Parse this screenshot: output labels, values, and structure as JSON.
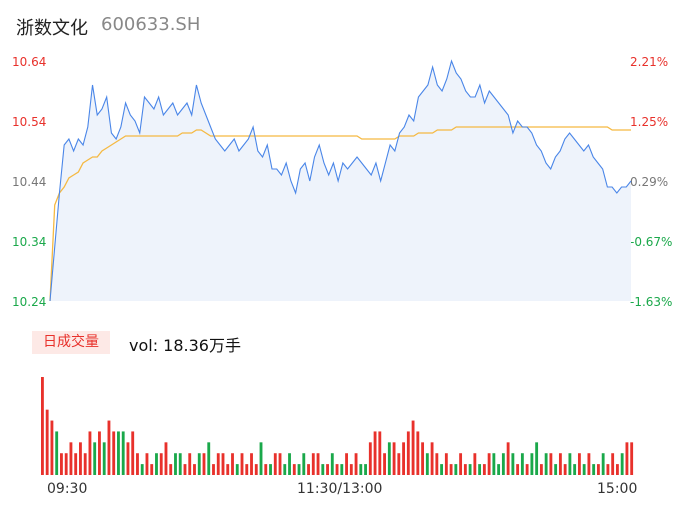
{
  "stock": {
    "name": "浙数文化",
    "code": "600633.SH"
  },
  "price_axis": {
    "labels": [
      "10.64",
      "10.54",
      "10.44",
      "10.34",
      "10.24"
    ]
  },
  "pct_axis": {
    "labels": [
      "2.21%",
      "1.25%",
      "0.29%",
      "-0.67%",
      "-1.63%"
    ]
  },
  "volume": {
    "badge": "日成交量",
    "text": "vol: 18.36万手"
  },
  "time_axis": {
    "labels": [
      "09:30",
      "11:30/13:00",
      "15:00"
    ]
  },
  "colors": {
    "price_line": "#4a86e8",
    "avg_line": "#f5b942",
    "up": "#e8312b",
    "down": "#1aa84a",
    "area": "#eef3fb"
  },
  "chart_data": [
    {
      "type": "line",
      "title": "",
      "ylim": [
        10.24,
        10.64
      ],
      "pct_ylim": [
        -1.63,
        2.21
      ],
      "x_labels": [
        "09:30",
        "11:30/13:00",
        "15:00"
      ],
      "series": [
        {
          "values": [
            10.24,
            10.33,
            10.42,
            10.5,
            10.51,
            10.49,
            10.51,
            10.5,
            10.53,
            10.6,
            10.55,
            10.56,
            10.58,
            10.52,
            10.51,
            10.53,
            10.57,
            10.55,
            10.54,
            10.52,
            10.58,
            10.57,
            10.56,
            10.58,
            10.55,
            10.56,
            10.57,
            10.55,
            10.56,
            10.57,
            10.55,
            10.6,
            10.57,
            10.55,
            10.53,
            10.51,
            10.5,
            10.49,
            10.5,
            10.51,
            10.49,
            10.5,
            10.51,
            10.53,
            10.49,
            10.48,
            10.5,
            10.46,
            10.46,
            10.45,
            10.47,
            10.44,
            10.42,
            10.46,
            10.47,
            10.44,
            10.48,
            10.5,
            10.47,
            10.45,
            10.47,
            10.44,
            10.47,
            10.46,
            10.47,
            10.48,
            10.47,
            10.46,
            10.45,
            10.47,
            10.44,
            10.47,
            10.5,
            10.49,
            10.52,
            10.53,
            10.55,
            10.54,
            10.58,
            10.59,
            10.6,
            10.63,
            10.6,
            10.59,
            10.61,
            10.64,
            10.62,
            10.61,
            10.59,
            10.58,
            10.58,
            10.6,
            10.57,
            10.59,
            10.58,
            10.57,
            10.56,
            10.55,
            10.52,
            10.54,
            10.53,
            10.53,
            10.52,
            10.5,
            10.49,
            10.47,
            10.46,
            10.48,
            10.49,
            10.51,
            10.52,
            10.51,
            10.5,
            10.49,
            10.5,
            10.48,
            10.47,
            10.46,
            10.43,
            10.43,
            10.42,
            10.43,
            10.43,
            10.44
          ]
        },
        {
          "values": [
            10.24,
            10.4,
            10.42,
            10.43,
            10.445,
            10.45,
            10.455,
            10.47,
            10.475,
            10.48,
            10.48,
            10.49,
            10.495,
            10.5,
            10.505,
            10.51,
            10.515,
            10.515,
            10.515,
            10.515,
            10.515,
            10.515,
            10.515,
            10.515,
            10.515,
            10.515,
            10.515,
            10.515,
            10.52,
            10.52,
            10.52,
            10.525,
            10.525,
            10.52,
            10.515,
            10.515,
            10.515,
            10.515,
            10.515,
            10.515,
            10.515,
            10.515,
            10.515,
            10.515,
            10.515,
            10.515,
            10.515,
            10.515,
            10.515,
            10.515,
            10.515,
            10.515,
            10.515,
            10.515,
            10.515,
            10.515,
            10.515,
            10.515,
            10.515,
            10.515,
            10.515,
            10.515,
            10.515,
            10.515,
            10.515,
            10.515,
            10.51,
            10.51,
            10.51,
            10.51,
            10.51,
            10.51,
            10.51,
            10.51,
            10.515,
            10.515,
            10.515,
            10.515,
            10.52,
            10.52,
            10.52,
            10.52,
            10.525,
            10.525,
            10.525,
            10.525,
            10.53,
            10.53,
            10.53,
            10.53,
            10.53,
            10.53,
            10.53,
            10.53,
            10.53,
            10.53,
            10.53,
            10.53,
            10.53,
            10.53,
            10.53,
            10.53,
            10.53,
            10.53,
            10.53,
            10.53,
            10.53,
            10.53,
            10.53,
            10.53,
            10.53,
            10.53,
            10.53,
            10.53,
            10.53,
            10.53,
            10.53,
            10.53,
            10.53,
            10.525,
            10.525,
            10.525,
            10.525,
            10.525
          ]
        }
      ]
    },
    {
      "type": "bar",
      "title": "",
      "values": [
        9,
        6,
        5,
        4,
        2,
        2,
        3,
        2,
        3,
        2,
        4,
        3,
        4,
        3,
        5,
        4,
        4,
        4,
        3,
        4,
        2,
        1,
        2,
        1,
        2,
        2,
        3,
        1,
        2,
        2,
        1,
        2,
        1,
        2,
        2,
        3,
        1,
        2,
        2,
        1,
        2,
        1,
        2,
        1,
        2,
        1,
        3,
        1,
        1,
        2,
        2,
        1,
        2,
        1,
        1,
        2,
        1,
        2,
        2,
        1,
        1,
        2,
        1,
        1,
        2,
        1,
        2,
        1,
        1,
        3,
        4,
        4,
        2,
        3,
        3,
        2,
        3,
        4,
        5,
        4,
        3,
        2,
        3,
        2,
        1,
        2,
        1,
        1,
        2,
        1,
        1,
        2,
        1,
        1,
        2,
        2,
        1,
        2,
        3,
        2,
        1,
        2,
        1,
        2,
        3,
        1,
        2,
        2,
        1,
        2,
        1,
        2,
        1,
        2,
        1,
        2,
        1,
        1,
        2,
        1,
        2,
        1,
        2,
        3,
        3
      ],
      "colors": [
        "up",
        "up",
        "up",
        "down",
        "up",
        "up",
        "up",
        "up",
        "up",
        "up",
        "up",
        "down",
        "up",
        "down",
        "up",
        "up",
        "down",
        "down",
        "up",
        "up",
        "up",
        "down",
        "up",
        "up",
        "down",
        "up",
        "up",
        "up",
        "down",
        "down",
        "up",
        "up",
        "up",
        "down",
        "up",
        "down",
        "up",
        "up",
        "up",
        "up",
        "up",
        "down",
        "up",
        "up",
        "up",
        "up",
        "down",
        "up",
        "down",
        "up",
        "up",
        "down",
        "down",
        "up",
        "down",
        "down",
        "up",
        "up",
        "up",
        "down",
        "up",
        "down",
        "up",
        "down",
        "up",
        "up",
        "up",
        "down",
        "down",
        "up",
        "up",
        "up",
        "up",
        "down",
        "up",
        "up",
        "up",
        "up",
        "up",
        "up",
        "up",
        "down",
        "up",
        "up",
        "down",
        "up",
        "up",
        "down",
        "up",
        "up",
        "down",
        "up",
        "down",
        "up",
        "up",
        "down",
        "down",
        "down",
        "up",
        "down",
        "up",
        "down",
        "up",
        "down",
        "down",
        "up",
        "down",
        "up",
        "down",
        "up",
        "up",
        "down",
        "down",
        "up",
        "down",
        "up",
        "down",
        "up",
        "down",
        "up",
        "up",
        "up",
        "down",
        "up",
        "up"
      ],
      "x_labels": [
        "09:30",
        "11:30/13:00",
        "15:00"
      ]
    }
  ]
}
